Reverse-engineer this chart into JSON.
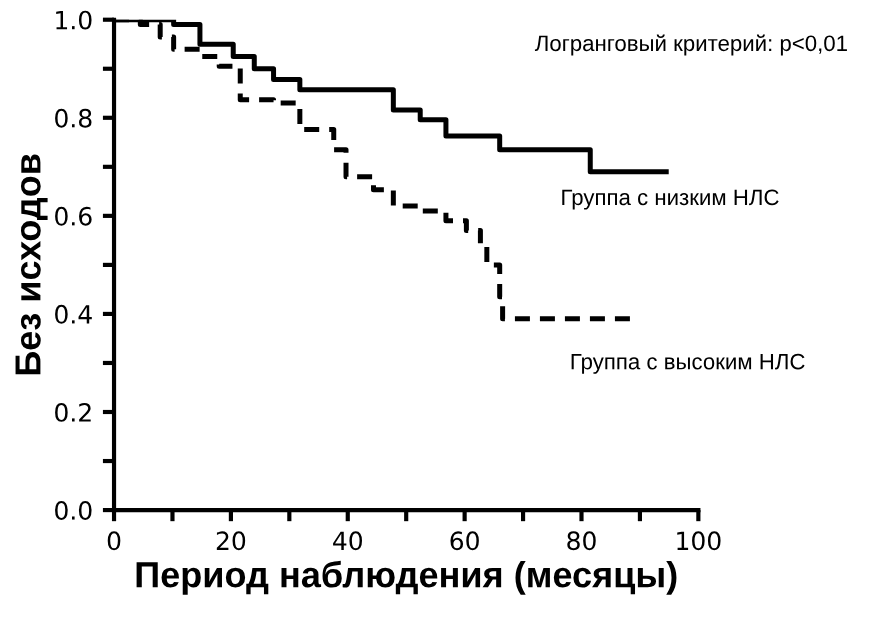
{
  "chart_data": {
    "type": "step",
    "xlabel": "Период наблюдения (месяцы)",
    "ylabel": "Без исходов",
    "series": [
      {
        "color": "#000000",
        "line_style": "solid",
        "x": [
          0,
          10.2,
          14.7,
          20.4,
          24,
          27.3,
          31.8,
          47.8,
          52.4,
          56.8,
          66,
          81.5,
          94.5
        ],
        "values": [
          1.0,
          0.99,
          0.95,
          0.925,
          0.9,
          0.878,
          0.857,
          0.816,
          0.796,
          0.763,
          0.735,
          0.69,
          0.69
        ]
      },
      {
        "color": "#000000",
        "line_style": "dashed",
        "x": [
          0,
          4.5,
          7.9,
          10.2,
          14.7,
          18,
          21.6,
          27.3,
          31.8,
          37.6,
          39.7,
          44.4,
          47.8,
          52.4,
          56.8,
          60.3,
          62.7,
          63.8,
          66,
          66.5,
          88.4
        ],
        "values": [
          1.0,
          0.99,
          0.965,
          0.94,
          0.925,
          0.905,
          0.837,
          0.83,
          0.776,
          0.735,
          0.68,
          0.653,
          0.62,
          0.61,
          0.59,
          0.57,
          0.54,
          0.5,
          0.435,
          0.39,
          0.39
        ]
      }
    ],
    "annotations": [
      "Логранговый критерий: p<0,01",
      "Группа с низким НЛС",
      "Группа с высоким НЛС"
    ],
    "xlim": [
      0,
      100
    ],
    "ylim": [
      0,
      1.0
    ],
    "xticks": [
      0,
      {
        "value": 10,
        "label": null
      },
      20,
      {
        "value": 30,
        "label": null
      },
      40,
      {
        "value": 50,
        "label": null
      },
      60,
      {
        "value": 70,
        "label": null
      },
      80,
      {
        "value": 90,
        "label": null
      },
      100
    ],
    "yticks": [
      {
        "value": 0,
        "label": "0.0"
      },
      {
        "value": 0.1,
        "label": null
      },
      {
        "value": 0.2,
        "label": "0.2"
      },
      {
        "value": 0.3,
        "label": null
      },
      {
        "value": 0.4,
        "label": "0.4"
      },
      {
        "value": 0.5,
        "label": null
      },
      {
        "value": 0.6,
        "label": "0.6"
      },
      {
        "value": 0.7,
        "label": null
      },
      {
        "value": 0.8,
        "label": "0.8"
      },
      {
        "value": 0.9,
        "label": null
      },
      {
        "value": 1.0,
        "label": "1.0"
      }
    ],
    "grid": false,
    "legend": false
  }
}
